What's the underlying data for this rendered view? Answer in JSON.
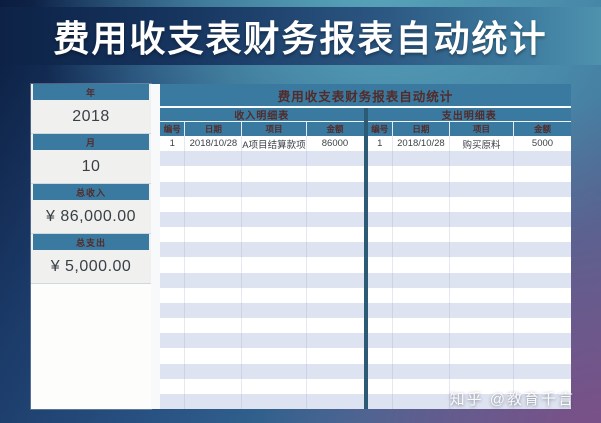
{
  "banner": {
    "title": "费用收支表财务报表自动统计"
  },
  "sidebar": {
    "fields": [
      {
        "label": "年",
        "value": "2018"
      },
      {
        "label": "月",
        "value": "10"
      },
      {
        "label": "总收入",
        "value": "¥ 86,000.00"
      },
      {
        "label": "总支出",
        "value": "¥ 5,000.00"
      }
    ]
  },
  "table": {
    "title": "费用收支表财务报表自动统计",
    "empty_row_count": 17,
    "sections": [
      {
        "name": "收入明细表",
        "columns": [
          "编号",
          "日期",
          "项目",
          "金额"
        ],
        "rows": [
          [
            "1",
            "2018/10/28",
            "A项目结算款项",
            "86000"
          ]
        ]
      },
      {
        "name": "支出明细表",
        "columns": [
          "编号",
          "日期",
          "项目",
          "金额"
        ],
        "rows": [
          [
            "1",
            "2018/10/28",
            "购买原料",
            "5000"
          ]
        ]
      }
    ]
  },
  "watermark": {
    "text": "知乎 @教育千言"
  },
  "colors": {
    "header_teal": "#3a7aa1",
    "header_text": "#532b28",
    "stripe": "#dde3f0",
    "divider": "#2d5a74",
    "banner_navy": "#0d2246",
    "background_purple": "#7c4f86"
  }
}
